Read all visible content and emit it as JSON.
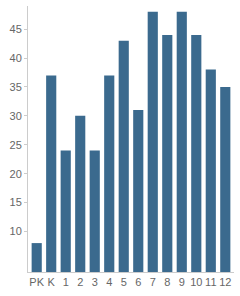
{
  "chart_data": {
    "type": "bar",
    "categories": [
      "PK",
      "K",
      "1",
      "2",
      "3",
      "4",
      "5",
      "6",
      "7",
      "8",
      "9",
      "10",
      "11",
      "12"
    ],
    "values": [
      8,
      37,
      24,
      30,
      24,
      37,
      43,
      31,
      48,
      44,
      48,
      44,
      38,
      35
    ],
    "color": "#3b6a8e",
    "ylim": [
      3,
      49
    ],
    "yticks": [
      10,
      15,
      20,
      25,
      30,
      35,
      40,
      45
    ],
    "grid": false
  }
}
